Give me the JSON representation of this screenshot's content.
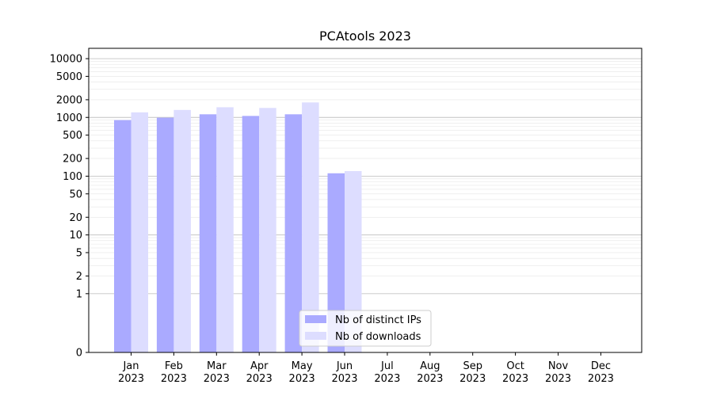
{
  "chart_data": {
    "type": "bar",
    "title": "PCAtools 2023",
    "xlabel": "",
    "ylabel": "",
    "y_scale": "symlog",
    "ylim": [
      0,
      15000
    ],
    "y_ticks": [
      0,
      1,
      2,
      5,
      10,
      20,
      50,
      100,
      200,
      500,
      1000,
      2000,
      5000,
      10000
    ],
    "y_tick_labels": [
      "0",
      "1",
      "2",
      "5",
      "10",
      "20",
      "50",
      "100",
      "200",
      "500",
      "1000",
      "2000",
      "5000",
      "10000"
    ],
    "categories": [
      {
        "month": "Jan",
        "year": "2023"
      },
      {
        "month": "Feb",
        "year": "2023"
      },
      {
        "month": "Mar",
        "year": "2023"
      },
      {
        "month": "Apr",
        "year": "2023"
      },
      {
        "month": "May",
        "year": "2023"
      },
      {
        "month": "Jun",
        "year": "2023"
      },
      {
        "month": "Jul",
        "year": "2023"
      },
      {
        "month": "Aug",
        "year": "2023"
      },
      {
        "month": "Sep",
        "year": "2023"
      },
      {
        "month": "Oct",
        "year": "2023"
      },
      {
        "month": "Nov",
        "year": "2023"
      },
      {
        "month": "Dec",
        "year": "2023"
      }
    ],
    "series": [
      {
        "name": "Nb of distinct IPs",
        "color": "#aaaaff",
        "values": [
          900,
          990,
          1130,
          1060,
          1130,
          112,
          0,
          0,
          0,
          0,
          0,
          0
        ]
      },
      {
        "name": "Nb of downloads",
        "color": "#ddddff",
        "values": [
          1220,
          1340,
          1490,
          1450,
          1800,
          122,
          0,
          0,
          0,
          0,
          0,
          0
        ]
      }
    ],
    "grid": true,
    "legend_position": "lower-center"
  }
}
